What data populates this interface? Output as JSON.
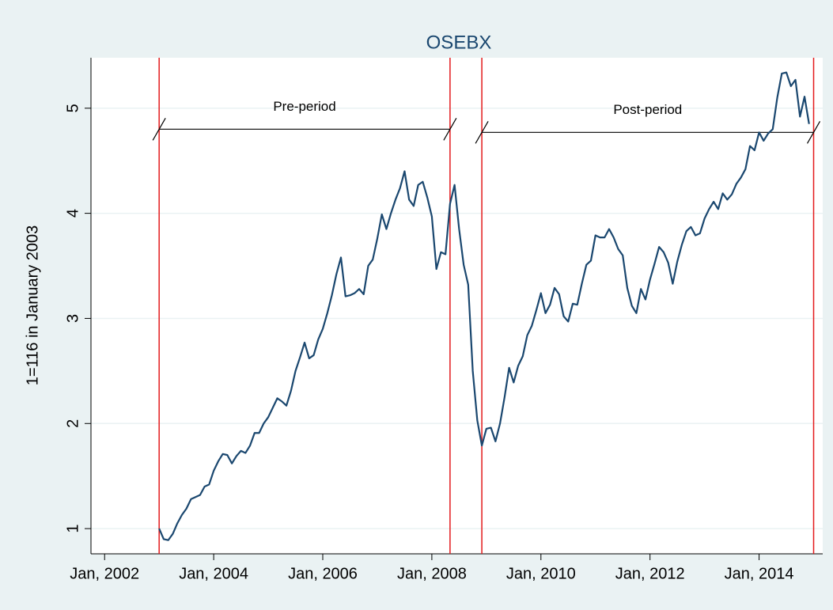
{
  "chart_data": {
    "type": "line",
    "title": "OSEBX",
    "y_label": "1=116 in January  2003",
    "color": "#1a476f",
    "vline_color": "#e31a1c",
    "grid": true,
    "x": [
      "2003-01",
      "2003-02",
      "2003-03",
      "2003-04",
      "2003-05",
      "2003-06",
      "2003-07",
      "2003-08",
      "2003-09",
      "2003-10",
      "2003-11",
      "2003-12",
      "2004-01",
      "2004-02",
      "2004-03",
      "2004-04",
      "2004-05",
      "2004-06",
      "2004-07",
      "2004-08",
      "2004-09",
      "2004-10",
      "2004-11",
      "2004-12",
      "2005-01",
      "2005-02",
      "2005-03",
      "2005-04",
      "2005-05",
      "2005-06",
      "2005-07",
      "2005-08",
      "2005-09",
      "2005-10",
      "2005-11",
      "2005-12",
      "2006-01",
      "2006-02",
      "2006-03",
      "2006-04",
      "2006-05",
      "2006-06",
      "2006-07",
      "2006-08",
      "2006-09",
      "2006-10",
      "2006-11",
      "2006-12",
      "2007-01",
      "2007-02",
      "2007-03",
      "2007-04",
      "2007-05",
      "2007-06",
      "2007-07",
      "2007-08",
      "2007-09",
      "2007-10",
      "2007-11",
      "2007-12",
      "2008-01",
      "2008-02",
      "2008-03",
      "2008-04",
      "2008-05",
      "2008-06",
      "2008-07",
      "2008-08",
      "2008-09",
      "2008-10",
      "2008-11",
      "2008-12",
      "2009-01",
      "2009-02",
      "2009-03",
      "2009-04",
      "2009-05",
      "2009-06",
      "2009-07",
      "2009-08",
      "2009-09",
      "2009-10",
      "2009-11",
      "2009-12",
      "2010-01",
      "2010-02",
      "2010-03",
      "2010-04",
      "2010-05",
      "2010-06",
      "2010-07",
      "2010-08",
      "2010-09",
      "2010-10",
      "2010-11",
      "2010-12",
      "2011-01",
      "2011-02",
      "2011-03",
      "2011-04",
      "2011-05",
      "2011-06",
      "2011-07",
      "2011-08",
      "2011-09",
      "2011-10",
      "2011-11",
      "2011-12",
      "2012-01",
      "2012-02",
      "2012-03",
      "2012-04",
      "2012-05",
      "2012-06",
      "2012-07",
      "2012-08",
      "2012-09",
      "2012-10",
      "2012-11",
      "2012-12",
      "2013-01",
      "2013-02",
      "2013-03",
      "2013-04",
      "2013-05",
      "2013-06",
      "2013-07",
      "2013-08",
      "2013-09",
      "2013-10",
      "2013-11",
      "2013-12",
      "2014-01",
      "2014-02",
      "2014-03",
      "2014-04",
      "2014-05",
      "2014-06",
      "2014-07",
      "2014-08",
      "2014-09",
      "2014-10",
      "2014-11",
      "2014-12"
    ],
    "values": [
      1.0,
      0.9,
      0.89,
      0.95,
      1.05,
      1.13,
      1.19,
      1.28,
      1.3,
      1.32,
      1.4,
      1.42,
      1.55,
      1.64,
      1.71,
      1.7,
      1.62,
      1.69,
      1.74,
      1.72,
      1.79,
      1.91,
      1.91,
      2.0,
      2.06,
      2.15,
      2.24,
      2.21,
      2.17,
      2.31,
      2.5,
      2.63,
      2.77,
      2.62,
      2.65,
      2.8,
      2.9,
      3.05,
      3.22,
      3.42,
      3.58,
      3.21,
      3.22,
      3.24,
      3.28,
      3.23,
      3.5,
      3.56,
      3.76,
      3.99,
      3.85,
      4.0,
      4.13,
      4.24,
      4.4,
      4.13,
      4.07,
      4.27,
      4.3,
      4.15,
      3.97,
      3.47,
      3.63,
      3.61,
      4.09,
      4.27,
      3.85,
      3.51,
      3.32,
      2.5,
      2.03,
      1.79,
      1.95,
      1.96,
      1.83,
      2.0,
      2.25,
      2.53,
      2.39,
      2.55,
      2.64,
      2.84,
      2.93,
      3.08,
      3.24,
      3.05,
      3.13,
      3.29,
      3.23,
      3.02,
      2.97,
      3.14,
      3.13,
      3.33,
      3.51,
      3.55,
      3.79,
      3.77,
      3.77,
      3.85,
      3.77,
      3.66,
      3.6,
      3.29,
      3.12,
      3.05,
      3.28,
      3.18,
      3.37,
      3.52,
      3.68,
      3.63,
      3.53,
      3.33,
      3.54,
      3.7,
      3.83,
      3.87,
      3.79,
      3.81,
      3.95,
      4.04,
      4.11,
      4.04,
      4.19,
      4.13,
      4.18,
      4.28,
      4.34,
      4.42,
      4.64,
      4.6,
      4.77,
      4.69,
      4.76,
      4.8,
      5.1,
      5.33,
      5.34,
      5.21,
      5.27,
      4.92,
      5.11,
      4.85
    ],
    "xlim": [
      "2001-10",
      "2015-03"
    ],
    "xticks": [
      {
        "value": "2002-01",
        "label": "Jan, 2002"
      },
      {
        "value": "2004-01",
        "label": "Jan, 2004"
      },
      {
        "value": "2006-01",
        "label": "Jan, 2006"
      },
      {
        "value": "2008-01",
        "label": "Jan, 2008"
      },
      {
        "value": "2010-01",
        "label": "Jan, 2010"
      },
      {
        "value": "2012-01",
        "label": "Jan, 2012"
      },
      {
        "value": "2014-01",
        "label": "Jan, 2014"
      }
    ],
    "ylim": [
      0.76,
      5.48
    ],
    "yticks": [
      1,
      2,
      3,
      4,
      5
    ],
    "vlines": [
      "2003-01",
      "2008-05",
      "2008-12",
      "2015-01"
    ],
    "annotations": [
      {
        "text": "Pre-period",
        "x": [
          "2003-01",
          "2008-05"
        ],
        "y": 4.8
      },
      {
        "text": "Post-period",
        "x": [
          "2008-12",
          "2015-01"
        ],
        "y": 4.77
      }
    ]
  }
}
